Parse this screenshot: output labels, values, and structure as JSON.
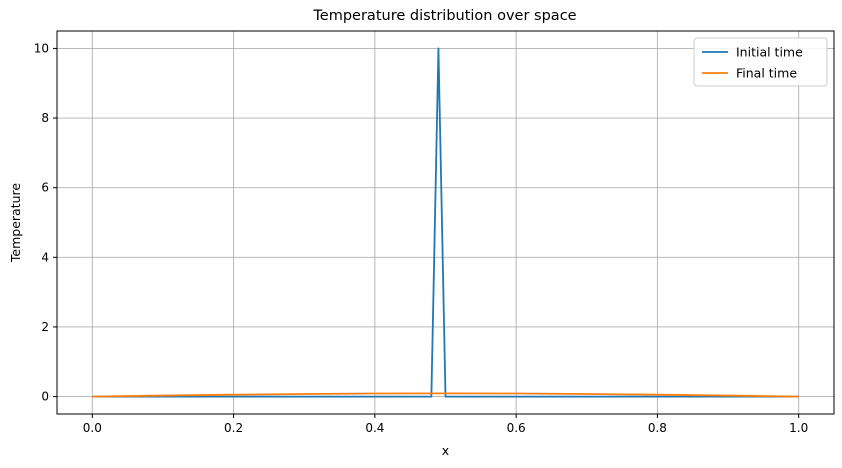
{
  "chart_data": {
    "type": "line",
    "title": "Temperature distribution over space",
    "xlabel": "x",
    "ylabel": "Temperature",
    "xlim": [
      -0.05,
      1.05
    ],
    "ylim": [
      -0.5,
      10.5
    ],
    "xticks": [
      0.0,
      0.2,
      0.4,
      0.6,
      0.8,
      1.0
    ],
    "xtick_labels": [
      "0.0",
      "0.2",
      "0.4",
      "0.6",
      "0.8",
      "1.0"
    ],
    "yticks": [
      0,
      2,
      4,
      6,
      8,
      10
    ],
    "ytick_labels": [
      "0",
      "2",
      "4",
      "6",
      "8",
      "10"
    ],
    "grid": true,
    "legend_position": "top-right",
    "series": [
      {
        "name": "Initial time",
        "color": "#1f77b4",
        "x": [
          0.0,
          0.48,
          0.49,
          0.5,
          1.0
        ],
        "y": [
          0,
          0,
          10,
          0,
          0
        ]
      },
      {
        "name": "Final time",
        "color": "#ff7f0e",
        "x": [
          0.0,
          0.1,
          0.2,
          0.3,
          0.4,
          0.5,
          0.6,
          0.7,
          0.8,
          0.9,
          1.0
        ],
        "y": [
          0,
          0.03,
          0.055,
          0.075,
          0.088,
          0.092,
          0.088,
          0.075,
          0.055,
          0.03,
          0
        ]
      }
    ]
  }
}
